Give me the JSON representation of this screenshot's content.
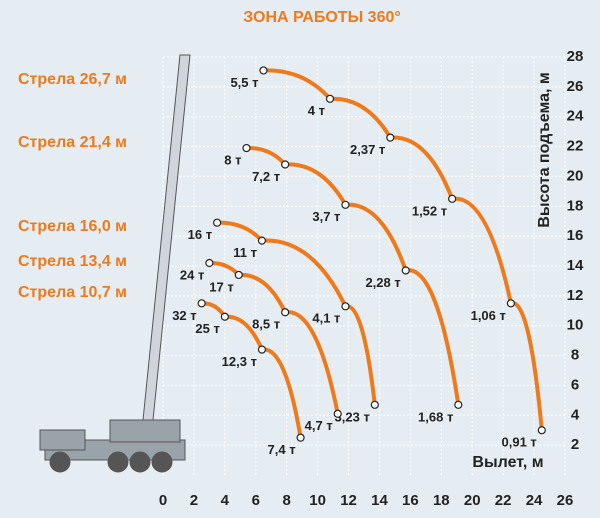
{
  "chart_data": {
    "type": "line",
    "title": "ЗОНА РАБОТЫ 360°",
    "x_label": "Вылет, м",
    "y_label": "Высота подъема, м",
    "xlim": [
      0,
      26
    ],
    "xticks": [
      0,
      2,
      4,
      6,
      8,
      10,
      12,
      14,
      16,
      18,
      20,
      22,
      24,
      26
    ],
    "ylim": [
      0,
      28
    ],
    "yticks": [
      2,
      4,
      6,
      8,
      10,
      12,
      14,
      16,
      18,
      20,
      22,
      24,
      26,
      28
    ],
    "grid": true,
    "series": [
      {
        "name": "Стрела 26,7 м",
        "color": "#ee7a1c",
        "x": [
          6.5,
          10.8,
          14.7,
          18.7,
          22.5,
          24.5
        ],
        "values": [
          27.1,
          25.2,
          22.6,
          18.5,
          11.5,
          3.0
        ],
        "labels": [
          "5,5 т",
          "4 т",
          "2,37 т",
          "1,52 т",
          "1,06 т",
          "0,91 т"
        ]
      },
      {
        "name": "Стрела 21,4 м",
        "color": "#ee7a1c",
        "x": [
          5.4,
          7.9,
          11.8,
          15.7,
          19.1
        ],
        "values": [
          21.9,
          20.8,
          18.1,
          13.7,
          4.7
        ],
        "labels": [
          "8 т",
          "7,2 т",
          "3,7 т",
          "2,28 т",
          "1,68 т"
        ]
      },
      {
        "name": "Стрела 16,0 м",
        "color": "#ee7a1c",
        "x": [
          3.5,
          6.4,
          11.8,
          13.7
        ],
        "values": [
          16.9,
          15.7,
          11.3,
          4.7
        ],
        "labels": [
          "16 т",
          "11 т",
          "4,1 т",
          "3,23 т"
        ]
      },
      {
        "name": "Стрела 13,4 м",
        "color": "#ee7a1c",
        "x": [
          3.0,
          4.9,
          7.9,
          11.3
        ],
        "values": [
          14.2,
          13.4,
          10.9,
          4.1
        ],
        "labels": [
          "24 т",
          "17 т",
          "8,5 т",
          "4,7 т"
        ]
      },
      {
        "name": "Стрела 10,7 м",
        "color": "#ee7a1c",
        "x": [
          2.5,
          4.0,
          6.4,
          8.9
        ],
        "values": [
          11.5,
          10.6,
          8.4,
          2.5
        ],
        "labels": [
          "32 т",
          "25 т",
          "12,3 т",
          "7,4 т"
        ]
      }
    ]
  }
}
